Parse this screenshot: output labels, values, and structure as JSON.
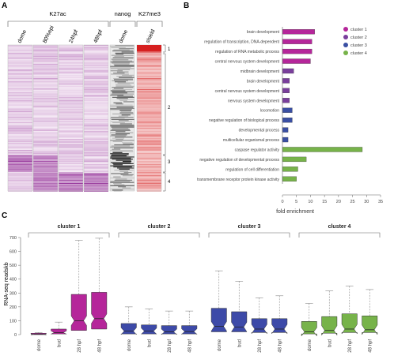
{
  "panel_labels": {
    "a": "A",
    "b": "B",
    "c": "C"
  },
  "heatmap": {
    "groups": [
      {
        "label": "K27ac",
        "columns": [
          "dome",
          "80%epi",
          "24hpf",
          "48hpf"
        ]
      },
      {
        "label": "nanog",
        "columns": [
          "dome"
        ]
      },
      {
        "label": "K27me3",
        "columns": [
          "shield"
        ]
      }
    ],
    "clusters": [
      "1",
      "2",
      "3",
      "4"
    ],
    "colors": {
      "purple": "#8a1f8f",
      "red": "#d62020",
      "black": "#111111"
    }
  },
  "chart_data": [
    {
      "type": "bar",
      "orientation": "horizontal",
      "categories": [
        "brain development",
        "regulation of transcription, DNA-dependent",
        "regulation of RNA metabolic process",
        "central nervous system development",
        "midbrain development",
        "brain development",
        "central nervous system development",
        "nervous system development",
        "locomotion",
        "negative regulation of biological process",
        "developmental process",
        "multicellular organismal process",
        "caspase regulator activity",
        "negative regulation of developmental process",
        "regulation of cell differentiation",
        "transmembrane receptor protein kinase activity"
      ],
      "values": [
        11.5,
        10.5,
        10.5,
        10,
        4,
        2.5,
        2.5,
        2.5,
        3.5,
        3.5,
        2,
        2,
        28.5,
        8.5,
        5.5,
        5
      ],
      "value_cluster": [
        "cluster 1",
        "cluster 1",
        "cluster 1",
        "cluster 1",
        "cluster 2",
        "cluster 2",
        "cluster 2",
        "cluster 2",
        "cluster 3",
        "cluster 3",
        "cluster 3",
        "cluster 3",
        "cluster 4",
        "cluster 4",
        "cluster 4",
        "cluster 4"
      ],
      "legend": [
        {
          "name": "cluster 1",
          "color": "#b5269a"
        },
        {
          "name": "cluster 2",
          "color": "#7a3f9c"
        },
        {
          "name": "cluster 3",
          "color": "#3a4fa3"
        },
        {
          "name": "cluster 4",
          "color": "#77b34a"
        }
      ],
      "legend_position": "top-right",
      "xlabel": "fold enrichment",
      "xlim": [
        0,
        35
      ],
      "xticks": [
        0,
        5,
        10,
        15,
        20,
        25,
        30,
        35
      ]
    },
    {
      "type": "boxplot",
      "ylabel": "RNA-seq readskb",
      "ylim": [
        0,
        700
      ],
      "yticks": [
        0,
        100,
        200,
        300,
        400,
        500,
        600,
        700
      ],
      "groups": [
        {
          "name": "cluster 1",
          "color": "#b5269a",
          "categories": [
            "dome",
            "bud",
            "28 hpf",
            "48 hpf"
          ],
          "boxes": [
            {
              "q1": 0,
              "median": 2,
              "q3": 10,
              "whisker_high": 15
            },
            {
              "q1": 5,
              "median": 15,
              "q3": 40,
              "whisker_high": 90
            },
            {
              "q1": 30,
              "median": 100,
              "q3": 290,
              "whisker_high": 680
            },
            {
              "q1": 40,
              "median": 115,
              "q3": 305,
              "whisker_high": 695
            }
          ]
        },
        {
          "name": "cluster 2",
          "color": "#3d4aa8",
          "categories": [
            "dome",
            "bud",
            "28 hpf",
            "48 hpf"
          ],
          "boxes": [
            {
              "q1": 5,
              "median": 25,
              "q3": 80,
              "whisker_high": 200
            },
            {
              "q1": 5,
              "median": 25,
              "q3": 70,
              "whisker_high": 185
            },
            {
              "q1": 5,
              "median": 20,
              "q3": 65,
              "whisker_high": 170
            },
            {
              "q1": 5,
              "median": 22,
              "q3": 65,
              "whisker_high": 170
            }
          ]
        },
        {
          "name": "cluster 3",
          "color": "#3d4aa8",
          "categories": [
            "dome",
            "bud",
            "28 hpf",
            "48 hpf"
          ],
          "boxes": [
            {
              "q1": 20,
              "median": 60,
              "q3": 190,
              "whisker_high": 460
            },
            {
              "q1": 20,
              "median": 55,
              "q3": 165,
              "whisker_high": 385
            },
            {
              "q1": 15,
              "median": 40,
              "q3": 115,
              "whisker_high": 265
            },
            {
              "q1": 15,
              "median": 40,
              "q3": 115,
              "whisker_high": 280
            }
          ]
        },
        {
          "name": "cluster 4",
          "color": "#77b34a",
          "categories": [
            "dome",
            "bud",
            "28 hpf",
            "48 hpf"
          ],
          "boxes": [
            {
              "q1": 5,
              "median": 20,
              "q3": 95,
              "whisker_high": 225
            },
            {
              "q1": 10,
              "median": 30,
              "q3": 130,
              "whisker_high": 315
            },
            {
              "q1": 15,
              "median": 40,
              "q3": 150,
              "whisker_high": 350
            },
            {
              "q1": 15,
              "median": 35,
              "q3": 135,
              "whisker_high": 325
            }
          ]
        }
      ]
    }
  ]
}
